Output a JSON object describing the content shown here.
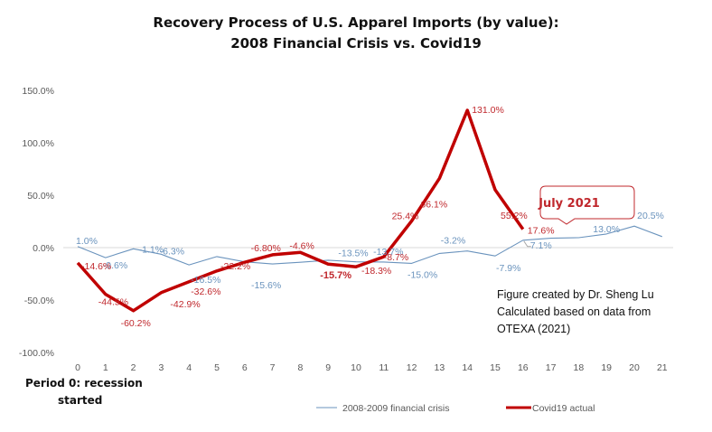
{
  "chart_data": {
    "type": "line",
    "title": "Recovery Process of U.S. Apparel Imports (by value):",
    "subtitle": "2008 Financial Crisis vs. Covid19",
    "xlabel": "Period 0: recession started",
    "xlabel_line1": "Period 0: recession",
    "xlabel_line2": "started",
    "ylabel": "",
    "x": [
      0,
      1,
      2,
      3,
      4,
      5,
      6,
      7,
      8,
      9,
      10,
      11,
      12,
      13,
      14,
      15,
      16,
      17,
      18,
      19,
      20,
      21
    ],
    "x_tick_labels": [
      "0",
      "1",
      "2",
      "3",
      "4",
      "5",
      "6",
      "7",
      "8",
      "9",
      "10",
      "11",
      "12",
      "13",
      "14",
      "15",
      "16",
      "17",
      "18",
      "19",
      "20",
      "21"
    ],
    "ylim": [
      -100,
      150
    ],
    "y_ticks": [
      150,
      100,
      50,
      0,
      -50,
      -100
    ],
    "y_tick_labels": [
      "150.0%",
      "100.0%",
      "50.0%",
      "0.0%",
      "-50.0%",
      "-100.0%"
    ],
    "grid": "zero-line only",
    "legend_position": "bottom",
    "series": [
      {
        "name": "2008-2009 financial crisis",
        "color": "#6a93bd",
        "values": [
          1.0,
          -9.6,
          -1.1,
          -6.3,
          -16.5,
          -8.5,
          -13.5,
          -15.6,
          -14.0,
          -12.0,
          -13.5,
          -13.7,
          -15.0,
          -5.5,
          -3.2,
          -7.9,
          7.1,
          9.0,
          9.5,
          13.0,
          20.5,
          10.5
        ],
        "data_labels": [
          "1.0%",
          "-9.6%",
          "-1.1%",
          "-6.3%",
          "-16.5%",
          null,
          null,
          "-15.6%",
          null,
          null,
          "-13.5%",
          "-13.7%",
          "-15.0%",
          null,
          "-3.2%",
          "-7.9%",
          "7.1%",
          null,
          null,
          "13.0%",
          "20.5%",
          null
        ]
      },
      {
        "name": "Covid19 actual",
        "color": "#c00000",
        "values": [
          -14.6,
          -44.5,
          -60.2,
          -42.9,
          -32.6,
          -22.2,
          -14.0,
          -6.8,
          -4.6,
          -15.7,
          -18.3,
          -8.7,
          25.4,
          66.1,
          131.0,
          55.2,
          17.6
        ],
        "data_labels": [
          "-14.6%",
          "-44.5%",
          "-60.2%",
          "-42.9%",
          "-32.6%",
          "-22.2%",
          null,
          "-6.80%",
          "-4.6%",
          "-15.7%",
          "-18.3%",
          "-8.7%",
          "25.4%",
          "66.1%",
          "131.0%",
          "55.2%",
          "17.6%"
        ]
      }
    ],
    "annotations": {
      "callout": "July 2021",
      "source_lines": [
        "Figure created by Dr. Sheng Lu",
        "Calculated based on data from",
        "OTEXA (2021)"
      ]
    }
  }
}
